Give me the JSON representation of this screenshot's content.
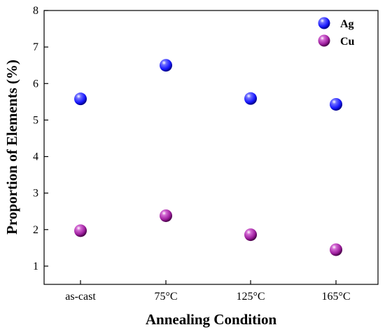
{
  "chart_data": {
    "type": "scatter",
    "categories": [
      "as-cast",
      "75°C",
      "125°C",
      "165°C"
    ],
    "series": [
      {
        "name": "Ag",
        "values": [
          5.58,
          6.5,
          5.59,
          5.43
        ],
        "color": "#1a1aff"
      },
      {
        "name": "Cu",
        "values": [
          1.97,
          2.38,
          1.86,
          1.45
        ],
        "color": "#8b1a8b"
      }
    ],
    "xlabel": "Annealing Condition",
    "ylabel": "Proportion of Elements (%)",
    "ylim": [
      0.5,
      8
    ],
    "yticks": [
      1,
      2,
      3,
      4,
      5,
      6,
      7,
      8
    ],
    "legend_position": "top-right",
    "grid": false
  }
}
